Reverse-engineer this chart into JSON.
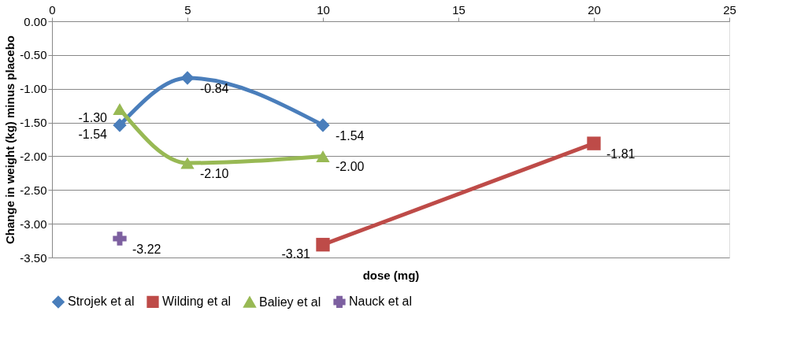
{
  "chart_data": {
    "type": "line",
    "xlabel": "dose (mg)",
    "ylabel": "Change in weight (kg) minus placebo",
    "xlim": [
      0,
      25
    ],
    "xticks": [
      0,
      5,
      10,
      15,
      20,
      25
    ],
    "ylim": [
      -3.5,
      0
    ],
    "yticks": [
      {
        "value": 0,
        "label": "0.00"
      },
      {
        "value": -0.5,
        "label": "-0.50"
      },
      {
        "value": -1,
        "label": "-1.00"
      },
      {
        "value": -1.5,
        "label": "-1.50"
      },
      {
        "value": -2,
        "label": "-2.00"
      },
      {
        "value": -2.5,
        "label": "-2.50"
      },
      {
        "value": -3,
        "label": "-3.00"
      },
      {
        "value": -3.5,
        "label": "-3.50"
      }
    ],
    "grid": "y",
    "legend": "bottom",
    "line_style": "solid",
    "series": [
      {
        "name": "Strojek et al",
        "color": "#4a7ebb",
        "marker": "diamond",
        "x": [
          2.5,
          5,
          10
        ],
        "values": [
          -1.54,
          -0.84,
          -1.54
        ],
        "value_labels": [
          "-1.54",
          "-0.84",
          "-1.54"
        ]
      },
      {
        "name": "Wilding et al",
        "color": "#be4b48",
        "marker": "square",
        "x": [
          10,
          20
        ],
        "values": [
          -3.31,
          -1.81
        ],
        "value_labels": [
          "-3.31",
          "-1.81"
        ]
      },
      {
        "name": "Baliey et al",
        "color": "#98b954",
        "marker": "triangle",
        "x": [
          2.5,
          5,
          10
        ],
        "values": [
          -1.3,
          -2.1,
          -2.0
        ],
        "value_labels": [
          "-1.30",
          "-2.10",
          "-2.00"
        ]
      },
      {
        "name": "Nauck et al",
        "color": "#7d60a0",
        "marker": "cross",
        "x": [
          2.5
        ],
        "values": [
          -3.22
        ],
        "value_labels": [
          "-3.22"
        ]
      }
    ]
  }
}
